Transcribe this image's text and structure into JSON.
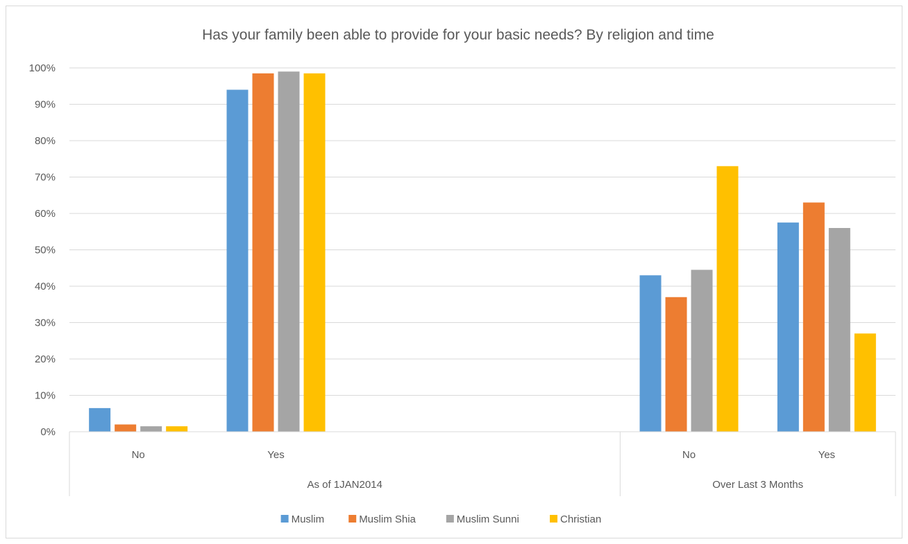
{
  "chart_data": {
    "type": "bar",
    "title": "Has your family been able to provide  for your basic needs? By religion and time",
    "ylim": [
      0,
      100
    ],
    "y_ticks": [
      "0%",
      "10%",
      "20%",
      "30%",
      "40%",
      "50%",
      "60%",
      "70%",
      "80%",
      "90%",
      "100%"
    ],
    "grid": true,
    "legend_position": "bottom",
    "groups": [
      {
        "label": "As of 1JAN2014",
        "categories": [
          "No",
          "Yes",
          "",
          ""
        ]
      },
      {
        "label": "Over Last 3 Months",
        "categories": [
          "No",
          "Yes"
        ]
      }
    ],
    "categories": [
      "No",
      "Yes",
      "",
      "",
      "No",
      "Yes"
    ],
    "series": [
      {
        "name": "Muslim",
        "color": "#5b9bd5",
        "values": [
          6.5,
          94,
          null,
          null,
          43,
          57.5
        ]
      },
      {
        "name": "Muslim Shia",
        "color": "#ed7d31",
        "values": [
          2,
          98.5,
          null,
          null,
          37,
          63
        ]
      },
      {
        "name": "Muslim Sunni",
        "color": "#a5a5a5",
        "values": [
          1.5,
          99,
          null,
          null,
          44.5,
          56
        ]
      },
      {
        "name": "Christian",
        "color": "#ffc000",
        "values": [
          1.5,
          98.5,
          null,
          null,
          73,
          27
        ]
      }
    ]
  }
}
